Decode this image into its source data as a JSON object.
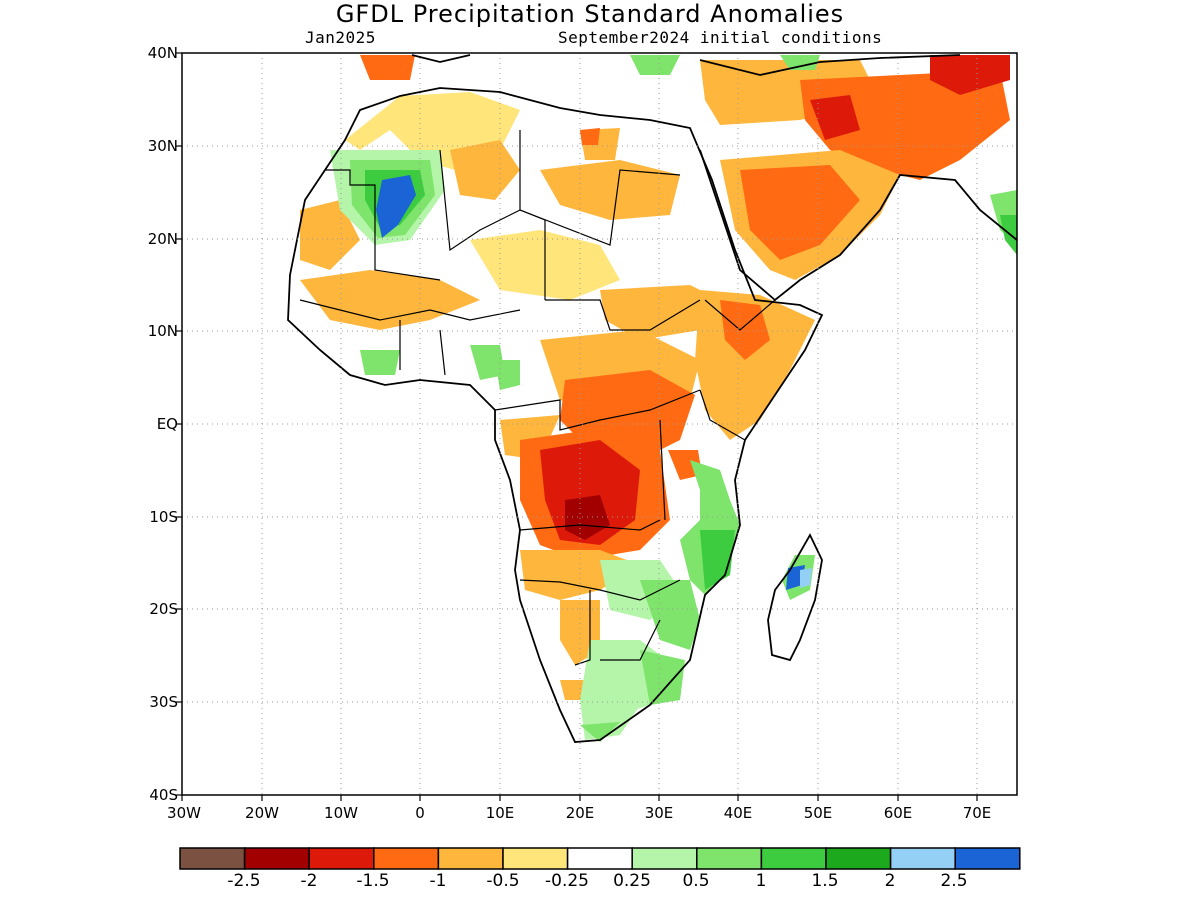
{
  "title": "GFDL Precipitation Standard Anomalies",
  "subtitle_left": "Jan2025",
  "subtitle_right": "September2024 initial conditions",
  "lat_labels": [
    "40N",
    "30N",
    "20N",
    "10N",
    "EQ",
    "10S",
    "20S",
    "30S",
    "40S"
  ],
  "lon_labels": [
    "30W",
    "20W",
    "10W",
    "0",
    "10E",
    "20E",
    "30E",
    "40E",
    "50E",
    "60E",
    "70E"
  ],
  "colorbar": {
    "colors": [
      "#7b5241",
      "#a20000",
      "#dd1a0a",
      "#ff6a12",
      "#ffb63c",
      "#ffe57a",
      "#ffffff",
      "#b4f5a9",
      "#7ee46c",
      "#3dcc3f",
      "#1da91e",
      "#94cff6",
      "#1a64d6"
    ],
    "labels": [
      "-2.5",
      "-2",
      "-1.5",
      "-1",
      "-0.5",
      "-0.25",
      "0.25",
      "0.5",
      "1",
      "1.5",
      "2",
      "2.5"
    ]
  },
  "map": {
    "domain": {
      "lon": [
        -30,
        75
      ],
      "lat": [
        -40,
        40
      ]
    },
    "grid": "dotted",
    "variable": "precipitation standard anomaly"
  }
}
